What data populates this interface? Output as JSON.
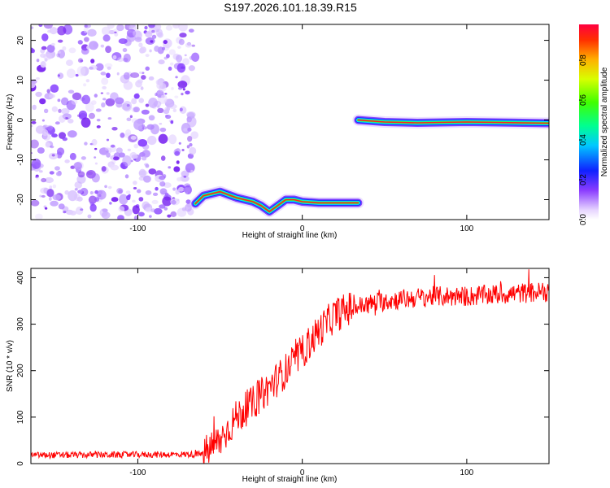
{
  "title": "S197.2026.101.18.39.R15",
  "chart_data": [
    {
      "type": "heatmap",
      "xlabel": "Height of straight line (km)",
      "ylabel": "Frequency (Hz)",
      "xlim": [
        -165,
        150
      ],
      "ylim": [
        -25,
        24
      ],
      "xticks": [
        "-100",
        "0",
        "100"
      ],
      "xtick_values": [
        -100,
        0,
        100
      ],
      "yticks": [
        "-20",
        "-10",
        "0",
        "10",
        "20"
      ],
      "ytick_values": [
        -20,
        -10,
        0,
        10,
        20
      ],
      "noise_region": {
        "x": [
          -165,
          -65
        ]
      },
      "signal_track": [
        {
          "x": -65,
          "y": -21
        },
        {
          "x": -60,
          "y": -19
        },
        {
          "x": -50,
          "y": -18
        },
        {
          "x": -40,
          "y": -19.5
        },
        {
          "x": -30,
          "y": -20.5
        },
        {
          "x": -25,
          "y": -21.5
        },
        {
          "x": -20,
          "y": -23
        },
        {
          "x": -15,
          "y": -21.5
        },
        {
          "x": -10,
          "y": -20
        },
        {
          "x": -5,
          "y": -20
        },
        {
          "x": 0,
          "y": -20.5
        },
        {
          "x": 10,
          "y": -20.8
        },
        {
          "x": 20,
          "y": -20.8
        },
        {
          "x": 34,
          "y": -20.8
        }
      ],
      "signal_track_2": [
        {
          "x": 34,
          "y": 0
        },
        {
          "x": 50,
          "y": -0.5
        },
        {
          "x": 70,
          "y": -0.7
        },
        {
          "x": 100,
          "y": -0.5
        },
        {
          "x": 150,
          "y": -0.8
        }
      ],
      "colorbar": {
        "label": "Normalized spectral amplitude",
        "ticks": [
          "0.0",
          "0.2",
          "0.4",
          "0.6",
          "0.8"
        ],
        "tick_values": [
          0.0,
          0.2,
          0.4,
          0.6,
          0.8
        ],
        "range": [
          0,
          0.98
        ]
      },
      "grid": false
    },
    {
      "type": "line",
      "xlabel": "Height of straight line (km)",
      "ylabel": "SNR (10 * v/v)",
      "xlim": [
        -165,
        150
      ],
      "ylim": [
        0,
        420
      ],
      "xticks": [
        "-100",
        "0",
        "100"
      ],
      "xtick_values": [
        -100,
        0,
        100
      ],
      "yticks": [
        "0",
        "100",
        "200",
        "300",
        "400"
      ],
      "ytick_values": [
        0,
        100,
        200,
        300,
        400
      ],
      "series": [
        {
          "color": "#ff0000",
          "trend": [
            {
              "x": -165,
              "y": 18
            },
            {
              "x": -60,
              "y": 20
            },
            {
              "x": -50,
              "y": 50
            },
            {
              "x": -40,
              "y": 100
            },
            {
              "x": -30,
              "y": 130
            },
            {
              "x": -20,
              "y": 165
            },
            {
              "x": -10,
              "y": 200
            },
            {
              "x": 0,
              "y": 240
            },
            {
              "x": 10,
              "y": 285
            },
            {
              "x": 20,
              "y": 320
            },
            {
              "x": 30,
              "y": 335
            },
            {
              "x": 50,
              "y": 350
            },
            {
              "x": 80,
              "y": 360
            },
            {
              "x": 100,
              "y": 360
            },
            {
              "x": 150,
              "y": 370
            }
          ]
        }
      ],
      "grid": false
    }
  ]
}
